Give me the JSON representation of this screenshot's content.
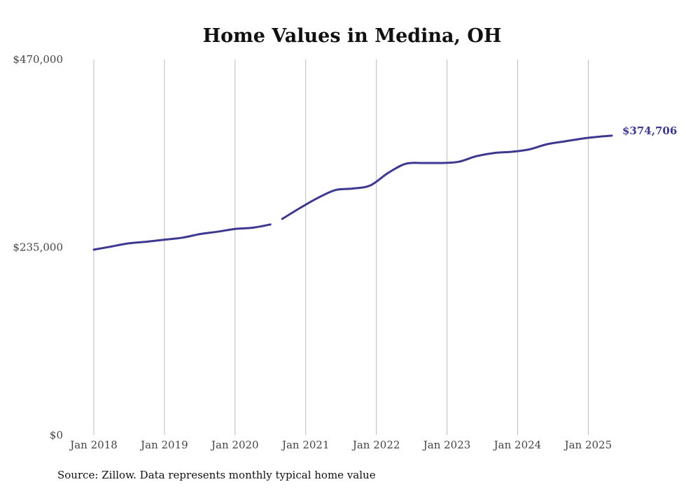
{
  "chart_data": {
    "type": "line",
    "title": "Home Values in Medina, OH",
    "ylim": [
      0,
      470000
    ],
    "yticks": [
      0,
      235000,
      470000
    ],
    "ytick_labels": [
      "$0",
      "$235,000",
      "$470,000"
    ],
    "xlim": [
      "2018-01",
      "2025-05"
    ],
    "xticks": [
      "2018-01",
      "2019-01",
      "2020-01",
      "2021-01",
      "2022-01",
      "2023-01",
      "2024-01",
      "2025-01"
    ],
    "xtick_labels": [
      "Jan 2018",
      "Jan 2019",
      "Jan 2020",
      "Jan 2021",
      "Jan 2022",
      "Jan 2023",
      "Jan 2024",
      "Jan 2025"
    ],
    "grid": {
      "vertical": true,
      "horizontal": false
    },
    "series": [
      {
        "color": "#3d3890",
        "segments": [
          {
            "x": [
              "2018-01",
              "2018-04",
              "2018-07",
              "2018-10",
              "2019-01",
              "2019-04",
              "2019-07",
              "2019-10",
              "2020-01",
              "2020-04",
              "2020-07"
            ],
            "y": [
              232000,
              236000,
              240000,
              242000,
              244500,
              247000,
              251500,
              254500,
              258000,
              259500,
              263500
            ]
          },
          {
            "x": [
              "2020-09",
              "2020-12",
              "2021-03",
              "2021-06",
              "2021-09",
              "2021-12",
              "2022-03",
              "2022-06",
              "2022-09",
              "2022-12",
              "2023-03",
              "2023-06",
              "2023-09",
              "2023-12",
              "2024-03",
              "2024-06",
              "2024-09",
              "2024-12",
              "2025-03",
              "2025-05"
            ],
            "y": [
              270500,
              284000,
              296500,
              306500,
              308500,
              312500,
              328000,
              339500,
              340500,
              340500,
              342000,
              349000,
              353000,
              354500,
              357500,
              364000,
              367500,
              371000,
              373500,
              374706
            ]
          }
        ]
      }
    ],
    "end_label": "$374,706",
    "source": "Source: Zillow. Data represents monthly typical home value"
  }
}
